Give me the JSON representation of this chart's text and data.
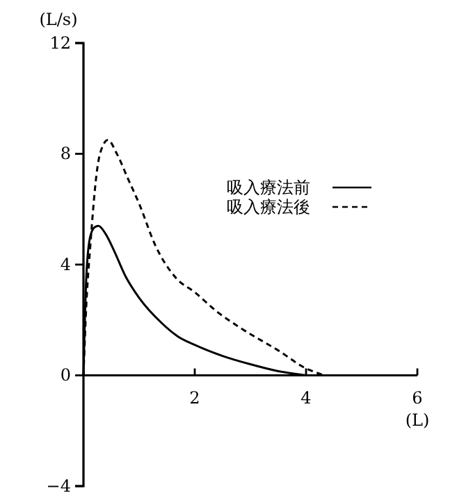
{
  "chart_data": {
    "type": "line",
    "xlabel": "(L)",
    "ylabel": "(L/s)",
    "xlim": [
      0,
      6
    ],
    "xticks": [
      {
        "value": 0,
        "label": null
      },
      2,
      4,
      6
    ],
    "ylim": [
      -4,
      12
    ],
    "yticks": [
      -4,
      0,
      4,
      8,
      12
    ],
    "grid": false,
    "legend": "right",
    "marker": "none",
    "series": [
      {
        "name": "吸入療法前",
        "color": "#000000",
        "line_style": "solid",
        "x": [
          0,
          0.05,
          0.12,
          0.2,
          0.27,
          0.4,
          0.55,
          0.75,
          1.0,
          1.4,
          1.7,
          2.0,
          2.5,
          3.0,
          3.5,
          4.0
        ],
        "values": [
          0,
          3.5,
          5.0,
          5.35,
          5.4,
          5.1,
          4.5,
          3.6,
          2.8,
          1.9,
          1.4,
          1.1,
          0.7,
          0.4,
          0.15,
          0
        ]
      },
      {
        "name": "吸入療法後",
        "color": "#000000",
        "line_style": "dashed",
        "x": [
          0,
          0.05,
          0.12,
          0.25,
          0.35,
          0.44,
          0.6,
          0.8,
          1.0,
          1.29,
          1.67,
          2.0,
          2.4,
          2.83,
          3.5,
          4.0,
          4.33
        ],
        "values": [
          0,
          2.5,
          4.6,
          7.5,
          8.3,
          8.5,
          8.0,
          7.1,
          6.2,
          4.7,
          3.5,
          3.0,
          2.3,
          1.7,
          0.9,
          0.25,
          0
        ]
      }
    ]
  }
}
